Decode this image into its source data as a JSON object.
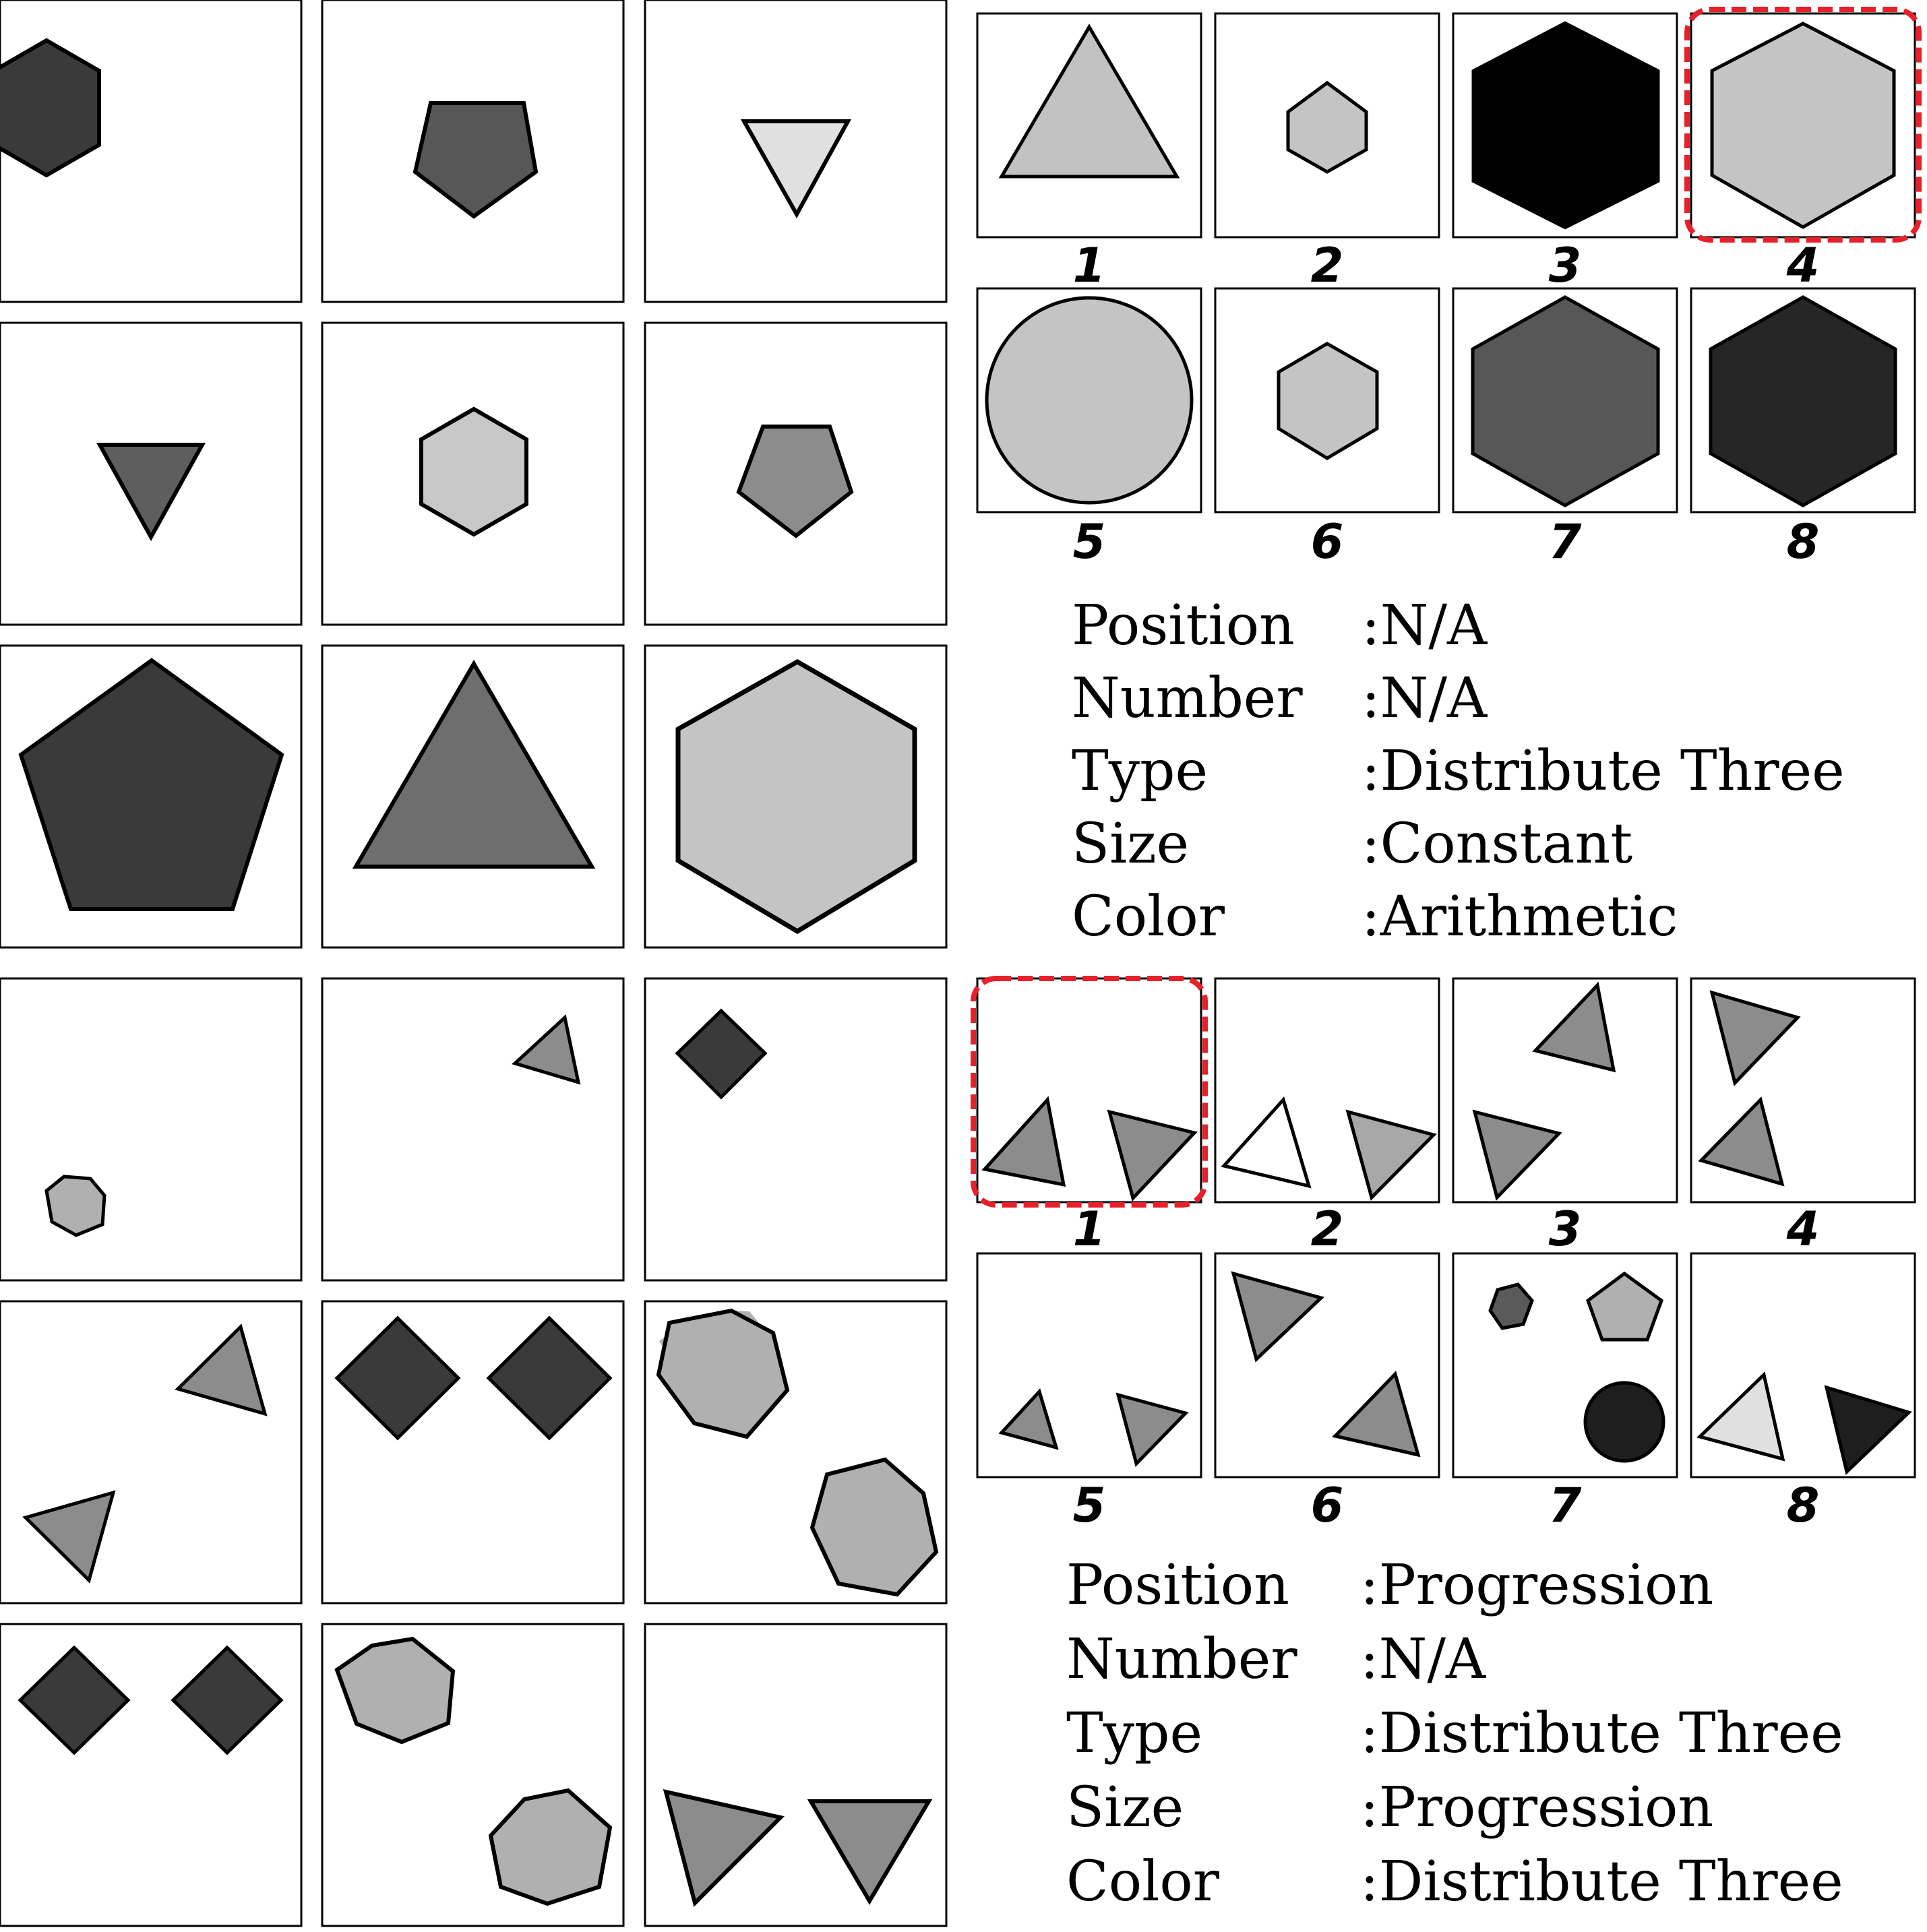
{
  "puzzles": [
    {
      "answer_choice": "4",
      "context_panels": [
        [
          {
            "shape": "hexagon",
            "fill": "#3a3a3a"
          }
        ],
        [
          {
            "shape": "pentagon",
            "fill": "#575757"
          }
        ],
        [
          {
            "shape": "triangle-down",
            "fill": "#e0e0e0"
          }
        ],
        [
          {
            "shape": "triangle-down",
            "fill": "#5e5e5e"
          }
        ],
        [
          {
            "shape": "hexagon",
            "fill": "#c8c8c8"
          }
        ],
        [
          {
            "shape": "pentagon",
            "fill": "#8c8c8c"
          }
        ],
        [
          {
            "shape": "pentagon",
            "fill": "#3a3a3a"
          }
        ],
        [
          {
            "shape": "triangle-up",
            "fill": "#6e6e6e"
          }
        ],
        [
          {
            "shape": "hexagon",
            "fill": "#c4c4c4"
          }
        ]
      ],
      "choices": [
        {
          "label": "1",
          "shapes": [
            {
              "shape": "triangle-up",
              "fill": "#c2c2c2"
            }
          ]
        },
        {
          "label": "2",
          "shapes": [
            {
              "shape": "hexagon",
              "fill": "#c4c4c4"
            }
          ]
        },
        {
          "label": "3",
          "shapes": [
            {
              "shape": "hexagon",
              "fill": "#000000"
            }
          ]
        },
        {
          "label": "4",
          "shapes": [
            {
              "shape": "hexagon",
              "fill": "#c4c4c4"
            }
          ]
        },
        {
          "label": "5",
          "shapes": [
            {
              "shape": "circle",
              "fill": "#c4c4c4"
            }
          ]
        },
        {
          "label": "6",
          "shapes": [
            {
              "shape": "hexagon",
              "fill": "#c4c4c4"
            }
          ]
        },
        {
          "label": "7",
          "shapes": [
            {
              "shape": "hexagon",
              "fill": "#575757"
            }
          ]
        },
        {
          "label": "8",
          "shapes": [
            {
              "shape": "hexagon",
              "fill": "#262626"
            }
          ]
        }
      ],
      "rules": [
        {
          "attribute": "Position",
          "value": ":N/A"
        },
        {
          "attribute": "Number",
          "value": ":N/A"
        },
        {
          "attribute": "Type",
          "value": ":Distribute Three"
        },
        {
          "attribute": "Size",
          "value": ":Constant"
        },
        {
          "attribute": "Color",
          "value": ":Arithmetic"
        }
      ]
    },
    {
      "answer_choice": "1",
      "context_panels": [
        [
          {
            "shape": "hexagon",
            "fill": "#b0b0b0"
          }
        ],
        [
          {
            "shape": "triangle",
            "fill": "#8c8c8c"
          }
        ],
        [
          {
            "shape": "diamond",
            "fill": "#3a3a3a"
          }
        ],
        [
          {
            "shape": "triangle",
            "fill": "#8c8c8c"
          },
          {
            "shape": "triangle",
            "fill": "#8c8c8c"
          }
        ],
        [
          {
            "shape": "diamond",
            "fill": "#3a3a3a"
          },
          {
            "shape": "diamond",
            "fill": "#3a3a3a"
          }
        ],
        [
          {
            "shape": "hexagon",
            "fill": "#b0b0b0"
          },
          {
            "shape": "hexagon",
            "fill": "#b0b0b0"
          }
        ],
        [
          {
            "shape": "diamond",
            "fill": "#3a3a3a"
          },
          {
            "shape": "diamond",
            "fill": "#3a3a3a"
          }
        ],
        [
          {
            "shape": "hexagon",
            "fill": "#b0b0b0"
          },
          {
            "shape": "hexagon",
            "fill": "#b0b0b0"
          }
        ],
        [
          {
            "shape": "triangle",
            "fill": "#8c8c8c"
          },
          {
            "shape": "triangle",
            "fill": "#8c8c8c"
          }
        ]
      ],
      "choices": [
        {
          "label": "1",
          "shapes": [
            {
              "shape": "triangle",
              "fill": "#8c8c8c"
            },
            {
              "shape": "triangle",
              "fill": "#8c8c8c"
            }
          ]
        },
        {
          "label": "2",
          "shapes": [
            {
              "shape": "triangle",
              "fill": "#ffffff"
            },
            {
              "shape": "triangle",
              "fill": "#a8a8a8"
            }
          ]
        },
        {
          "label": "3",
          "shapes": [
            {
              "shape": "triangle",
              "fill": "#8c8c8c"
            },
            {
              "shape": "triangle",
              "fill": "#8c8c8c"
            }
          ]
        },
        {
          "label": "4",
          "shapes": [
            {
              "shape": "triangle",
              "fill": "#8c8c8c"
            },
            {
              "shape": "triangle",
              "fill": "#8c8c8c"
            }
          ]
        },
        {
          "label": "5",
          "shapes": [
            {
              "shape": "triangle",
              "fill": "#8c8c8c"
            },
            {
              "shape": "triangle",
              "fill": "#8c8c8c"
            }
          ]
        },
        {
          "label": "6",
          "shapes": [
            {
              "shape": "triangle",
              "fill": "#8c8c8c"
            },
            {
              "shape": "triangle",
              "fill": "#8c8c8c"
            }
          ]
        },
        {
          "label": "7",
          "shapes": [
            {
              "shape": "hexagon",
              "fill": "#5a5a5a"
            },
            {
              "shape": "pentagon",
              "fill": "#b0b0b0"
            },
            {
              "shape": "circle",
              "fill": "#1e1e1e"
            }
          ]
        },
        {
          "label": "8",
          "shapes": [
            {
              "shape": "triangle",
              "fill": "#e0e0e0"
            },
            {
              "shape": "triangle",
              "fill": "#1e1e1e"
            }
          ]
        }
      ],
      "rules": [
        {
          "attribute": "Position",
          "value": ":Progression"
        },
        {
          "attribute": "Number",
          "value": ":N/A"
        },
        {
          "attribute": "Type",
          "value": ":Distribute Three"
        },
        {
          "attribute": "Size",
          "value": ":Progression"
        },
        {
          "attribute": "Color",
          "value": ":Distribute Three"
        }
      ]
    }
  ],
  "colors": {
    "border": "#000000",
    "highlight": "#e8202a",
    "background": "#ffffff"
  }
}
